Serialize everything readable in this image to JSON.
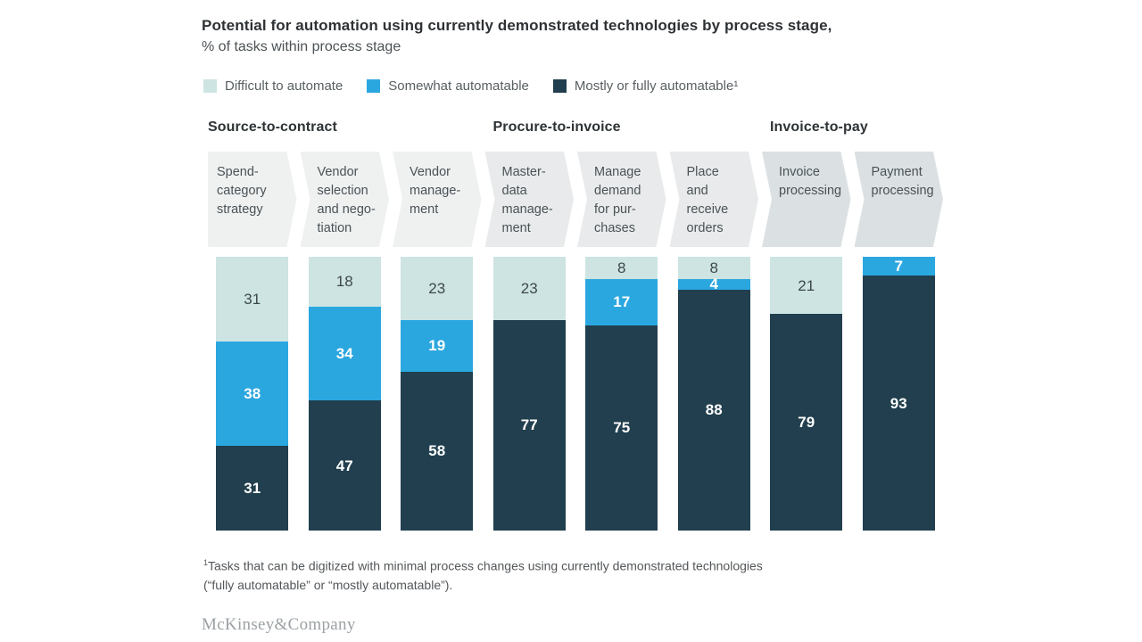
{
  "chart_data": {
    "type": "bar",
    "variant": "stacked-100-percent-vertical",
    "title": "Potential for automation using currently demonstrated technologies by process stage,",
    "subtitle": "% of tasks within process stage",
    "ylim": [
      0,
      100
    ],
    "grid": false,
    "legend_position": "top-left",
    "legend": [
      {
        "name": "difficult",
        "label": "Difficult to automate",
        "color": "#cde4e2"
      },
      {
        "name": "somewhat",
        "label": "Somewhat automatable",
        "color": "#2ba7e0"
      },
      {
        "name": "mostly",
        "label": "Mostly or fully automatable¹",
        "color": "#213f4e"
      }
    ],
    "groups": [
      {
        "label": "Source-to-contract",
        "span": [
          0,
          3
        ],
        "chevron_color": "#eff1f1"
      },
      {
        "label": "Procure-to-invoice",
        "span": [
          3,
          6
        ],
        "chevron_color": "#e8eaeb"
      },
      {
        "label": "Invoice-to-pay",
        "span": [
          6,
          8
        ],
        "chevron_color": "#dbe1e3"
      }
    ],
    "series_order": [
      "difficult",
      "somewhat",
      "mostly"
    ],
    "stages": [
      {
        "group": 0,
        "label": "Spend-\ncategory\nstrategy",
        "values": {
          "difficult": 31,
          "somewhat": 38,
          "mostly": 31
        }
      },
      {
        "group": 0,
        "label": "Vendor\nselection\nand nego-\ntiation",
        "values": {
          "difficult": 18,
          "somewhat": 34,
          "mostly": 47
        }
      },
      {
        "group": 0,
        "label": "Vendor\nmanage-\nment",
        "values": {
          "difficult": 23,
          "somewhat": 19,
          "mostly": 58
        }
      },
      {
        "group": 1,
        "label": "Master-\ndata\nmanage-\nment",
        "values": {
          "difficult": 23,
          "somewhat": 0,
          "mostly": 77
        }
      },
      {
        "group": 1,
        "label": "Manage\ndemand\nfor pur-\nchases",
        "values": {
          "difficult": 8,
          "somewhat": 17,
          "mostly": 75
        }
      },
      {
        "group": 1,
        "label": "Place\nand receive\norders",
        "values": {
          "difficult": 8,
          "somewhat": 4,
          "mostly": 88
        }
      },
      {
        "group": 2,
        "label": "Invoice\nprocessing",
        "values": {
          "difficult": 21,
          "somewhat": 0,
          "mostly": 79
        }
      },
      {
        "group": 2,
        "label": "Payment\nprocessing",
        "values": {
          "difficult": 0,
          "somewhat": 7,
          "mostly": 93
        }
      }
    ]
  },
  "footnote": {
    "sup": "1",
    "line1": "Tasks that can be digitized with minimal process changes using currently demonstrated technologies",
    "line2": "(“fully automatable” or “mostly automatable”)."
  },
  "logo": "McKinsey&Company"
}
